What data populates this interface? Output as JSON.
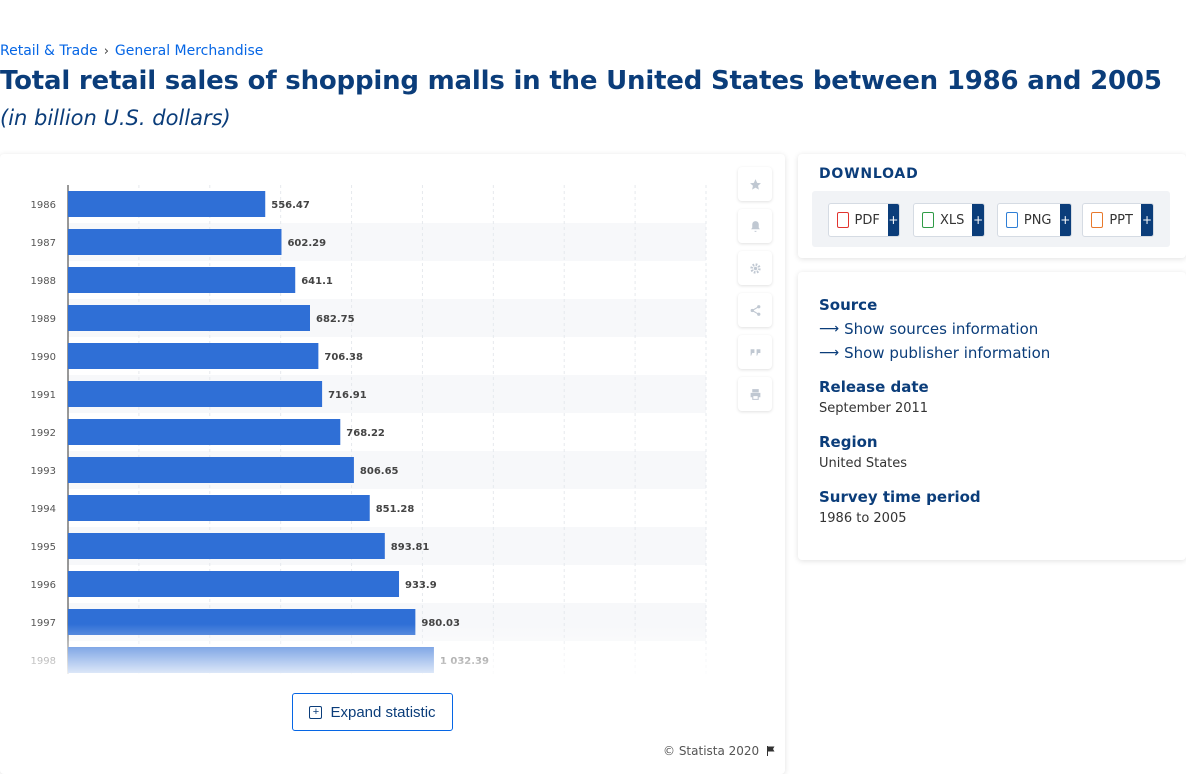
{
  "breadcrumb": {
    "items": [
      "Retail & Trade",
      "General Merchandise"
    ],
    "separator": "›"
  },
  "title": "Total retail sales of shopping malls in the United States between 1986 and 2005",
  "subtitle": "(in billion U.S. dollars)",
  "chart_data": {
    "type": "bar",
    "orientation": "horizontal",
    "categories": [
      "1986",
      "1987",
      "1988",
      "1989",
      "1990",
      "1991",
      "1992",
      "1993",
      "1994",
      "1995",
      "1996",
      "1997",
      "1998"
    ],
    "values": [
      556.47,
      602.29,
      641.1,
      682.75,
      706.38,
      716.91,
      768.22,
      806.65,
      851.28,
      893.81,
      933.9,
      980.03,
      1032.39
    ],
    "data_labels": [
      "556.47",
      "602.29",
      "641.1",
      "682.75",
      "706.38",
      "716.91",
      "768.22",
      "806.65",
      "851.28",
      "893.81",
      "933.9",
      "980.03",
      "1 032.39"
    ],
    "xlim": [
      0,
      1800
    ],
    "grid": true,
    "bar_color": "#2f6fd6"
  },
  "toolbar_icons": [
    "star-icon",
    "bell-icon",
    "gear-icon",
    "share-icon",
    "quote-icon",
    "print-icon"
  ],
  "expand_label": "Expand statistic",
  "copyright": "© Statista 2020",
  "download": {
    "title": "DOWNLOAD",
    "buttons": [
      {
        "label": "PDF",
        "color": "#e2342f"
      },
      {
        "label": "XLS",
        "color": "#2f9b46"
      },
      {
        "label": "PNG",
        "color": "#2f7fd6"
      },
      {
        "label": "PPT",
        "color": "#e8792c"
      }
    ],
    "plus": "+"
  },
  "info": {
    "source_heading": "Source",
    "sources_link": "Show sources information",
    "publisher_link": "Show publisher information",
    "release_heading": "Release date",
    "release_value": "September 2011",
    "region_heading": "Region",
    "region_value": "United States",
    "period_heading": "Survey time period",
    "period_value": "1986 to 2005"
  }
}
